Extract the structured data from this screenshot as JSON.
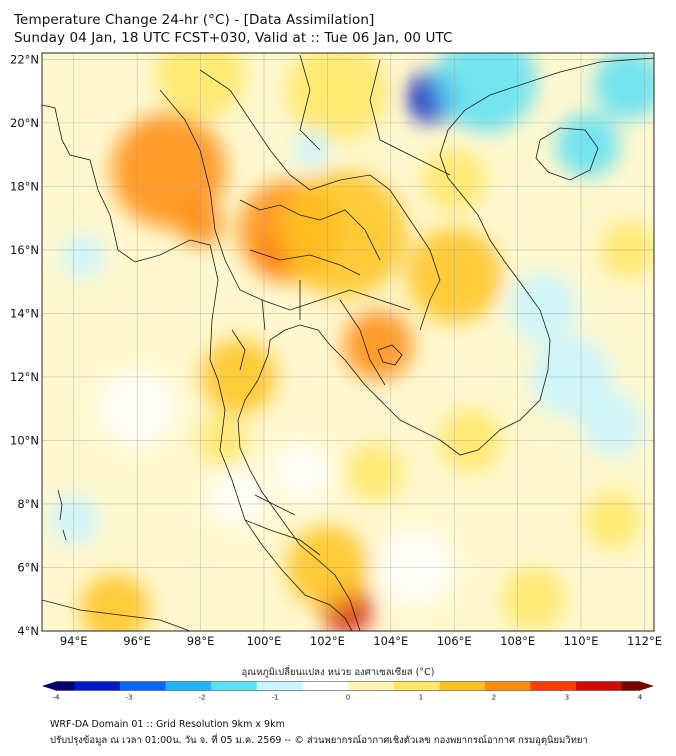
{
  "header": {
    "title": "Temperature Change 24-hr (°C) - [Data Assimilation]",
    "subtitle": "Sunday 04 Jan, 18 UTC FCST+030, Valid at :: Tue 06 Jan, 00 UTC"
  },
  "map": {
    "lon_labels": [
      "94°E",
      "96°E",
      "98°E",
      "100°E",
      "102°E",
      "104°E",
      "106°E",
      "108°E",
      "110°E",
      "112°E"
    ],
    "lat_labels": [
      "22°N",
      "20°N",
      "18°N",
      "16°N",
      "14°N",
      "12°N",
      "10°N",
      "8°N",
      "6°N",
      "4°N"
    ],
    "lon_range": [
      93,
      112.3
    ],
    "lat_range": [
      4,
      22.2
    ],
    "field_blobs": [
      {
        "lon": 97.0,
        "lat": 18.5,
        "value": 1.9,
        "r": 1.8
      },
      {
        "lon": 98.0,
        "lat": 16.8,
        "value": 2.4,
        "r": 0.7
      },
      {
        "lon": 100.5,
        "lat": 15.8,
        "value": 2.6,
        "r": 0.7
      },
      {
        "lon": 100.8,
        "lat": 16.6,
        "value": 2.0,
        "r": 1.6
      },
      {
        "lon": 102.5,
        "lat": 16.5,
        "value": 1.5,
        "r": 2.0
      },
      {
        "lon": 102.3,
        "lat": 21.0,
        "value": 1.2,
        "r": 1.6
      },
      {
        "lon": 98.0,
        "lat": 21.5,
        "value": 1.0,
        "r": 1.4
      },
      {
        "lon": 103.6,
        "lat": 13.0,
        "value": 2.2,
        "r": 1.1
      },
      {
        "lon": 106.0,
        "lat": 15.2,
        "value": 1.4,
        "r": 1.5
      },
      {
        "lon": 99.2,
        "lat": 12.0,
        "value": 1.3,
        "r": 1.2
      },
      {
        "lon": 98.7,
        "lat": 10.0,
        "value": 1.0,
        "r": 0.8
      },
      {
        "lon": 102.6,
        "lat": 4.7,
        "value": 3.1,
        "r": 0.8
      },
      {
        "lon": 102.0,
        "lat": 6.0,
        "value": 1.8,
        "r": 1.3
      },
      {
        "lon": 95.3,
        "lat": 4.7,
        "value": 1.3,
        "r": 1.1
      },
      {
        "lon": 106.5,
        "lat": 10.0,
        "value": 1.0,
        "r": 1.0
      },
      {
        "lon": 103.5,
        "lat": 9.0,
        "value": 0.9,
        "r": 0.9
      },
      {
        "lon": 108.5,
        "lat": 5.0,
        "value": 1.1,
        "r": 1.0
      },
      {
        "lon": 111.0,
        "lat": 7.5,
        "value": 0.9,
        "r": 0.9
      },
      {
        "lon": 106.0,
        "lat": 18.2,
        "value": 0.8,
        "r": 1.0
      },
      {
        "lon": 111.5,
        "lat": 16.0,
        "value": 0.8,
        "r": 0.9
      },
      {
        "lon": 105.3,
        "lat": 20.8,
        "value": -3.2,
        "r": 0.8
      },
      {
        "lon": 107.0,
        "lat": 21.3,
        "value": -1.8,
        "r": 1.6
      },
      {
        "lon": 111.5,
        "lat": 21.2,
        "value": -1.7,
        "r": 1.1
      },
      {
        "lon": 110.2,
        "lat": 19.3,
        "value": -1.4,
        "r": 1.0
      },
      {
        "lon": 94.3,
        "lat": 15.8,
        "value": -1.2,
        "r": 0.7
      },
      {
        "lon": 94.0,
        "lat": 7.5,
        "value": -1.2,
        "r": 0.8
      },
      {
        "lon": 109.7,
        "lat": 12.0,
        "value": -0.9,
        "r": 1.3
      },
      {
        "lon": 108.8,
        "lat": 14.2,
        "value": -0.9,
        "r": 1.1
      },
      {
        "lon": 111.0,
        "lat": 10.5,
        "value": -0.8,
        "r": 1.0
      },
      {
        "lon": 99.2,
        "lat": 8.2,
        "value": -0.6,
        "r": 0.9
      },
      {
        "lon": 101.5,
        "lat": 19.2,
        "value": -0.8,
        "r": 0.6
      },
      {
        "lon": 101.2,
        "lat": 9.0,
        "value": -0.5,
        "r": 0.9
      },
      {
        "lon": 96.0,
        "lat": 11.0,
        "value": -0.4,
        "r": 1.2
      },
      {
        "lon": 104.8,
        "lat": 6.0,
        "value": -0.5,
        "r": 1.2
      }
    ]
  },
  "colorbar": {
    "title": "อุณหภูมิเปลี่ยนแปลง หน่วย องศาเซลเซียส (°C)",
    "min": -4,
    "max": 4,
    "tick_labels": [
      "-4",
      "-3",
      "-2",
      "-1",
      "0",
      "1",
      "2",
      "3",
      "4"
    ],
    "colors": [
      "#000073",
      "#0019c8",
      "#0a64ff",
      "#1eb4ff",
      "#5ae1f5",
      "#c8f5ff",
      "#ffffff",
      "#fff5b4",
      "#ffe864",
      "#ffc31e",
      "#ff8c0a",
      "#ff3c00",
      "#d20a00",
      "#7a0000"
    ]
  },
  "footer": {
    "line1": "WRF-DA Domain 01 :: Grid Resolution 9km x 9km",
    "line2": "ปรับปรุงข้อมูล ณ เวลา 01:00น. วัน จ. ที่ 05 ม.ค. 2569 -- © ส่วนพยากรณ์อากาศเชิงตัวเลข กองพยากรณ์อากาศ กรมอุตุนิยมวิทยา"
  }
}
